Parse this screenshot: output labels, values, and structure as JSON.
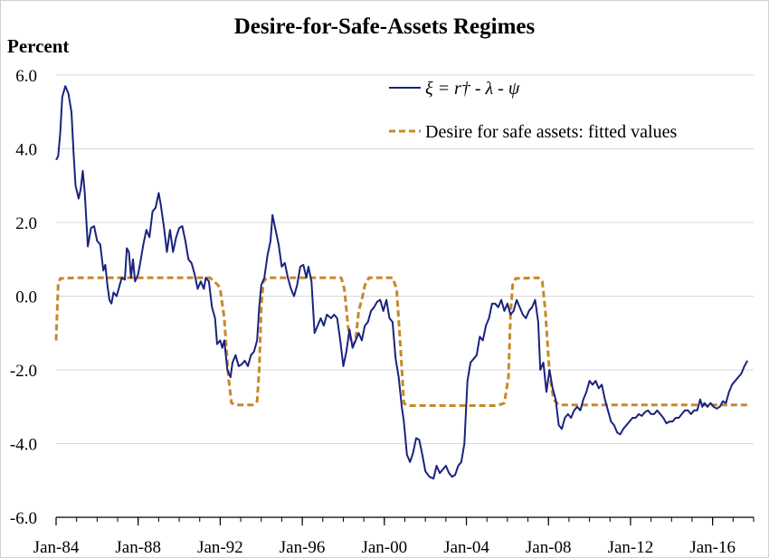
{
  "chart_data": {
    "type": "line",
    "title": "Desire-for-Safe-Assets Regimes",
    "ylabel": "Percent",
    "xlabel": "",
    "ylim": [
      -6.0,
      6.0
    ],
    "yticks": [
      "6.0",
      "4.0",
      "2.0",
      "0.0",
      "-2.0",
      "-4.0",
      "-6.0"
    ],
    "yticks_values": [
      6,
      4,
      2,
      0,
      -2,
      -4,
      -6
    ],
    "xlim": [
      1984.0,
      2018.0
    ],
    "xticks": [
      "Jan-84",
      "Jan-88",
      "Jan-92",
      "Jan-96",
      "Jan-00",
      "Jan-04",
      "Jan-08",
      "Jan-12",
      "Jan-16"
    ],
    "xticks_values": [
      1984,
      1988,
      1992,
      1996,
      2000,
      2004,
      2008,
      2012,
      2016
    ],
    "grid": "horizontal",
    "legend_position": "top-right",
    "colors": {
      "xi": "#1a237e",
      "fitted": "#c8882a",
      "grid": "#d9d9d9"
    },
    "series": [
      {
        "name": "ξ = r† - λ - ψ",
        "style": "solid",
        "points": [
          [
            1984.0,
            3.7
          ],
          [
            1984.1,
            3.8
          ],
          [
            1984.2,
            4.4
          ],
          [
            1984.3,
            5.4
          ],
          [
            1984.45,
            5.7
          ],
          [
            1984.6,
            5.5
          ],
          [
            1984.75,
            5.0
          ],
          [
            1984.85,
            3.9
          ],
          [
            1984.95,
            3.0
          ],
          [
            1985.1,
            2.65
          ],
          [
            1985.2,
            2.9
          ],
          [
            1985.3,
            3.4
          ],
          [
            1985.4,
            2.8
          ],
          [
            1985.55,
            1.35
          ],
          [
            1985.7,
            1.85
          ],
          [
            1985.85,
            1.9
          ],
          [
            1986.0,
            1.5
          ],
          [
            1986.15,
            1.4
          ],
          [
            1986.3,
            0.7
          ],
          [
            1986.4,
            0.85
          ],
          [
            1986.5,
            0.3
          ],
          [
            1986.6,
            -0.1
          ],
          [
            1986.7,
            -0.2
          ],
          [
            1986.8,
            0.1
          ],
          [
            1986.95,
            0.0
          ],
          [
            1987.1,
            0.3
          ],
          [
            1987.2,
            0.5
          ],
          [
            1987.35,
            0.45
          ],
          [
            1987.45,
            1.3
          ],
          [
            1987.55,
            1.2
          ],
          [
            1987.65,
            0.5
          ],
          [
            1987.75,
            1.0
          ],
          [
            1987.85,
            0.4
          ],
          [
            1988.0,
            0.6
          ],
          [
            1988.1,
            0.9
          ],
          [
            1988.25,
            1.4
          ],
          [
            1988.4,
            1.8
          ],
          [
            1988.55,
            1.6
          ],
          [
            1988.7,
            2.3
          ],
          [
            1988.85,
            2.4
          ],
          [
            1989.0,
            2.8
          ],
          [
            1989.1,
            2.5
          ],
          [
            1989.25,
            1.9
          ],
          [
            1989.4,
            1.2
          ],
          [
            1989.55,
            1.8
          ],
          [
            1989.7,
            1.2
          ],
          [
            1989.85,
            1.6
          ],
          [
            1990.0,
            1.85
          ],
          [
            1990.15,
            1.9
          ],
          [
            1990.3,
            1.5
          ],
          [
            1990.45,
            1.0
          ],
          [
            1990.6,
            0.9
          ],
          [
            1990.75,
            0.6
          ],
          [
            1990.9,
            0.2
          ],
          [
            1991.05,
            0.4
          ],
          [
            1991.2,
            0.2
          ],
          [
            1991.3,
            0.5
          ],
          [
            1991.45,
            0.4
          ],
          [
            1991.6,
            -0.3
          ],
          [
            1991.75,
            -0.6
          ],
          [
            1991.85,
            -1.3
          ],
          [
            1992.0,
            -1.2
          ],
          [
            1992.1,
            -1.4
          ],
          [
            1992.2,
            -1.2
          ],
          [
            1992.35,
            -2.0
          ],
          [
            1992.5,
            -2.2
          ],
          [
            1992.6,
            -1.8
          ],
          [
            1992.75,
            -1.6
          ],
          [
            1992.9,
            -1.9
          ],
          [
            1993.05,
            -1.85
          ],
          [
            1993.2,
            -1.75
          ],
          [
            1993.35,
            -1.9
          ],
          [
            1993.5,
            -1.6
          ],
          [
            1993.65,
            -1.5
          ],
          [
            1993.8,
            -1.2
          ],
          [
            1993.9,
            -0.3
          ],
          [
            1994.0,
            0.3
          ],
          [
            1994.15,
            0.5
          ],
          [
            1994.3,
            1.1
          ],
          [
            1994.45,
            1.5
          ],
          [
            1994.55,
            2.2
          ],
          [
            1994.7,
            1.8
          ],
          [
            1994.85,
            1.4
          ],
          [
            1995.0,
            0.8
          ],
          [
            1995.15,
            0.9
          ],
          [
            1995.3,
            0.5
          ],
          [
            1995.45,
            0.2
          ],
          [
            1995.6,
            0.0
          ],
          [
            1995.75,
            0.3
          ],
          [
            1995.9,
            0.8
          ],
          [
            1996.05,
            0.85
          ],
          [
            1996.2,
            0.5
          ],
          [
            1996.3,
            0.8
          ],
          [
            1996.45,
            0.4
          ],
          [
            1996.6,
            -1.0
          ],
          [
            1996.75,
            -0.8
          ],
          [
            1996.9,
            -0.6
          ],
          [
            1997.05,
            -0.8
          ],
          [
            1997.2,
            -0.5
          ],
          [
            1997.4,
            -0.6
          ],
          [
            1997.55,
            -0.5
          ],
          [
            1997.7,
            -0.6
          ],
          [
            1997.85,
            -1.2
          ],
          [
            1998.0,
            -1.9
          ],
          [
            1998.15,
            -1.5
          ],
          [
            1998.3,
            -0.9
          ],
          [
            1998.45,
            -1.4
          ],
          [
            1998.6,
            -1.2
          ],
          [
            1998.75,
            -1.0
          ],
          [
            1998.9,
            -1.2
          ],
          [
            1999.05,
            -0.8
          ],
          [
            1999.2,
            -0.7
          ],
          [
            1999.35,
            -0.4
          ],
          [
            1999.5,
            -0.3
          ],
          [
            1999.65,
            -0.15
          ],
          [
            1999.8,
            -0.1
          ],
          [
            1999.95,
            -0.4
          ],
          [
            2000.1,
            -0.1
          ],
          [
            2000.25,
            -0.6
          ],
          [
            2000.4,
            -0.7
          ],
          [
            2000.55,
            -1.7
          ],
          [
            2000.7,
            -2.2
          ],
          [
            2000.85,
            -3.0
          ],
          [
            2000.95,
            -3.4
          ],
          [
            2001.1,
            -4.3
          ],
          [
            2001.25,
            -4.5
          ],
          [
            2001.4,
            -4.25
          ],
          [
            2001.55,
            -3.85
          ],
          [
            2001.7,
            -3.9
          ],
          [
            2001.85,
            -4.3
          ],
          [
            2002.0,
            -4.75
          ],
          [
            2002.2,
            -4.9
          ],
          [
            2002.4,
            -4.95
          ],
          [
            2002.55,
            -4.6
          ],
          [
            2002.7,
            -4.8
          ],
          [
            2002.85,
            -4.7
          ],
          [
            2003.0,
            -4.6
          ],
          [
            2003.15,
            -4.8
          ],
          [
            2003.3,
            -4.9
          ],
          [
            2003.45,
            -4.85
          ],
          [
            2003.6,
            -4.6
          ],
          [
            2003.75,
            -4.5
          ],
          [
            2003.9,
            -4.0
          ],
          [
            2004.05,
            -2.3
          ],
          [
            2004.2,
            -1.8
          ],
          [
            2004.35,
            -1.7
          ],
          [
            2004.5,
            -1.6
          ],
          [
            2004.65,
            -1.1
          ],
          [
            2004.8,
            -1.2
          ],
          [
            2004.95,
            -0.8
          ],
          [
            2005.1,
            -0.6
          ],
          [
            2005.25,
            -0.2
          ],
          [
            2005.4,
            -0.2
          ],
          [
            2005.55,
            -0.3
          ],
          [
            2005.7,
            -0.1
          ],
          [
            2005.85,
            -0.4
          ],
          [
            2006.0,
            -0.2
          ],
          [
            2006.15,
            -0.5
          ],
          [
            2006.3,
            -0.4
          ],
          [
            2006.45,
            -0.1
          ],
          [
            2006.6,
            -0.3
          ],
          [
            2006.75,
            -0.5
          ],
          [
            2006.9,
            -0.6
          ],
          [
            2007.05,
            -0.4
          ],
          [
            2007.2,
            -0.3
          ],
          [
            2007.35,
            -0.1
          ],
          [
            2007.5,
            -0.7
          ],
          [
            2007.6,
            -2.0
          ],
          [
            2007.75,
            -1.8
          ],
          [
            2007.9,
            -2.6
          ],
          [
            2008.05,
            -2.0
          ],
          [
            2008.2,
            -2.5
          ],
          [
            2008.35,
            -2.8
          ],
          [
            2008.5,
            -3.5
          ],
          [
            2008.65,
            -3.6
          ],
          [
            2008.8,
            -3.3
          ],
          [
            2008.95,
            -3.2
          ],
          [
            2009.1,
            -3.3
          ],
          [
            2009.25,
            -3.1
          ],
          [
            2009.4,
            -3.0
          ],
          [
            2009.55,
            -3.1
          ],
          [
            2009.7,
            -2.8
          ],
          [
            2009.85,
            -2.6
          ],
          [
            2010.0,
            -2.3
          ],
          [
            2010.15,
            -2.4
          ],
          [
            2010.3,
            -2.3
          ],
          [
            2010.45,
            -2.5
          ],
          [
            2010.6,
            -2.4
          ],
          [
            2010.75,
            -2.8
          ],
          [
            2010.9,
            -3.1
          ],
          [
            2011.05,
            -3.4
          ],
          [
            2011.2,
            -3.5
          ],
          [
            2011.35,
            -3.7
          ],
          [
            2011.5,
            -3.75
          ],
          [
            2011.65,
            -3.6
          ],
          [
            2011.8,
            -3.5
          ],
          [
            2011.95,
            -3.4
          ],
          [
            2012.1,
            -3.3
          ],
          [
            2012.25,
            -3.3
          ],
          [
            2012.4,
            -3.2
          ],
          [
            2012.55,
            -3.25
          ],
          [
            2012.7,
            -3.15
          ],
          [
            2012.85,
            -3.1
          ],
          [
            2013.0,
            -3.2
          ],
          [
            2013.15,
            -3.2
          ],
          [
            2013.3,
            -3.1
          ],
          [
            2013.45,
            -3.2
          ],
          [
            2013.6,
            -3.3
          ],
          [
            2013.75,
            -3.45
          ],
          [
            2013.9,
            -3.4
          ],
          [
            2014.05,
            -3.4
          ],
          [
            2014.2,
            -3.3
          ],
          [
            2014.35,
            -3.3
          ],
          [
            2014.5,
            -3.2
          ],
          [
            2014.65,
            -3.1
          ],
          [
            2014.8,
            -3.1
          ],
          [
            2014.95,
            -3.2
          ],
          [
            2015.1,
            -3.1
          ],
          [
            2015.25,
            -3.1
          ],
          [
            2015.4,
            -2.8
          ],
          [
            2015.5,
            -3.0
          ],
          [
            2015.6,
            -2.9
          ],
          [
            2015.75,
            -3.0
          ],
          [
            2015.9,
            -2.9
          ],
          [
            2016.05,
            -3.0
          ],
          [
            2016.2,
            -3.05
          ],
          [
            2016.35,
            -3.0
          ],
          [
            2016.5,
            -2.85
          ],
          [
            2016.65,
            -2.9
          ],
          [
            2016.8,
            -2.6
          ],
          [
            2016.95,
            -2.4
          ],
          [
            2017.1,
            -2.3
          ],
          [
            2017.25,
            -2.2
          ],
          [
            2017.4,
            -2.1
          ],
          [
            2017.55,
            -1.9
          ],
          [
            2017.7,
            -1.75
          ]
        ]
      },
      {
        "name": "Desire for safe assets: fitted values",
        "style": "dashed",
        "points": [
          [
            1984.0,
            -1.2
          ],
          [
            1984.1,
            0.3
          ],
          [
            1984.2,
            0.48
          ],
          [
            1985.0,
            0.5
          ],
          [
            1988.0,
            0.5
          ],
          [
            1991.5,
            0.5
          ],
          [
            1991.7,
            0.4
          ],
          [
            1991.9,
            0.3
          ],
          [
            1992.0,
            0.2
          ],
          [
            1992.2,
            -0.6
          ],
          [
            1992.4,
            -2.2
          ],
          [
            1992.55,
            -2.9
          ],
          [
            1992.8,
            -2.95
          ],
          [
            1993.6,
            -2.95
          ],
          [
            1993.8,
            -2.85
          ],
          [
            1993.9,
            -2.0
          ],
          [
            1994.0,
            -0.3
          ],
          [
            1994.1,
            0.4
          ],
          [
            1994.3,
            0.5
          ],
          [
            1996.0,
            0.5
          ],
          [
            1997.9,
            0.5
          ],
          [
            1998.05,
            0.2
          ],
          [
            1998.25,
            -0.9
          ],
          [
            1998.45,
            -1.35
          ],
          [
            1998.6,
            -1.2
          ],
          [
            1998.75,
            -0.4
          ],
          [
            1998.9,
            -0.1
          ],
          [
            1999.05,
            0.3
          ],
          [
            1999.25,
            0.5
          ],
          [
            2000.4,
            0.5
          ],
          [
            2000.6,
            0.2
          ],
          [
            2000.8,
            -1.5
          ],
          [
            2000.95,
            -2.9
          ],
          [
            2001.1,
            -2.97
          ],
          [
            2004.0,
            -2.97
          ],
          [
            2005.5,
            -2.97
          ],
          [
            2005.85,
            -2.9
          ],
          [
            2006.05,
            -2.2
          ],
          [
            2006.15,
            -0.5
          ],
          [
            2006.25,
            0.3
          ],
          [
            2006.4,
            0.48
          ],
          [
            2007.5,
            0.5
          ],
          [
            2007.7,
            0.4
          ],
          [
            2007.85,
            -0.4
          ],
          [
            2008.05,
            -2.1
          ],
          [
            2008.25,
            -2.8
          ],
          [
            2008.5,
            -2.95
          ],
          [
            2010.0,
            -2.95
          ],
          [
            2014.0,
            -2.95
          ],
          [
            2017.7,
            -2.95
          ]
        ]
      }
    ]
  }
}
